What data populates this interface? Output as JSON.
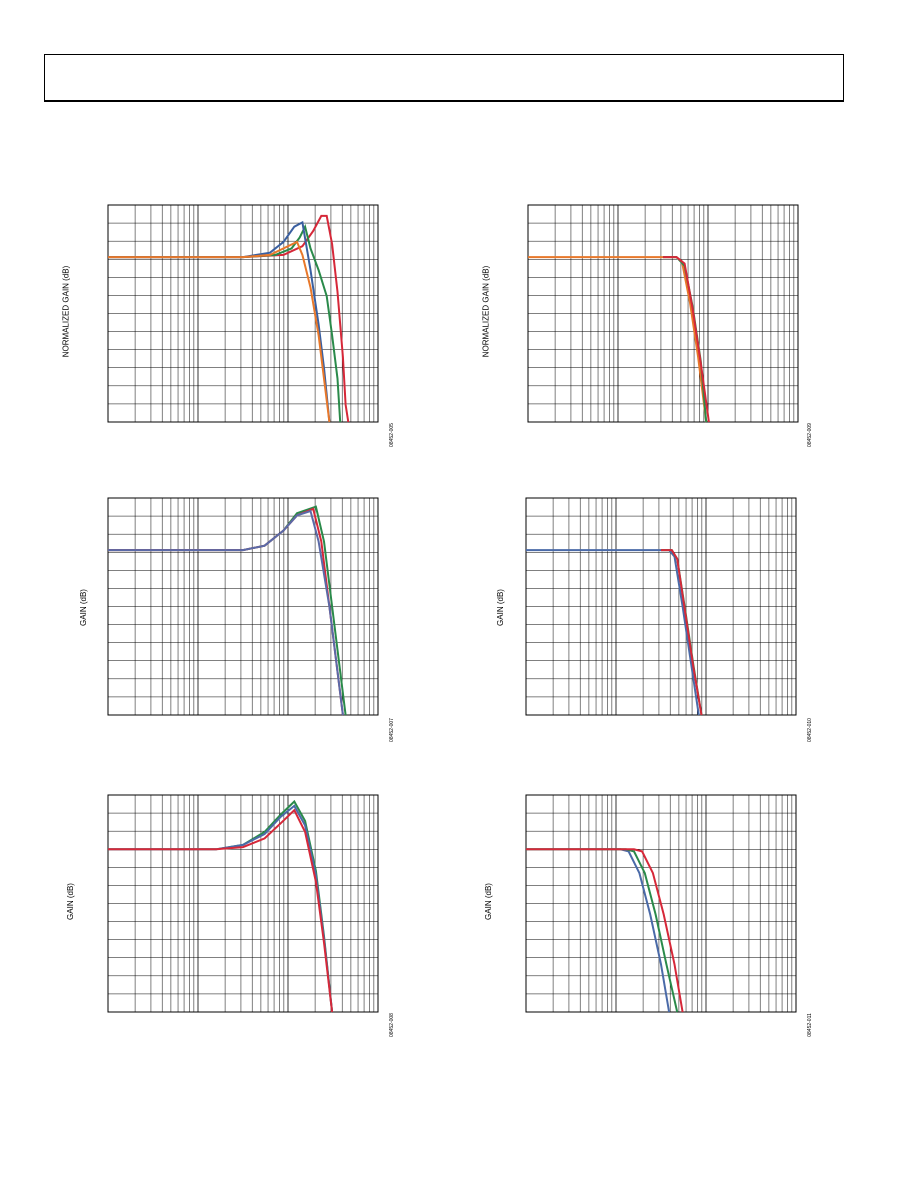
{
  "chart_data": [
    {
      "id": "p1",
      "type": "line",
      "ylabel": "NORMALIZED GAIN (dB)",
      "code": "08452-005",
      "grid_v": true,
      "grid_h": true,
      "log_x": true,
      "series": [
        {
          "color": "#d62839",
          "pts": [
            [
              0,
              0.24
            ],
            [
              0.5,
              0.24
            ],
            [
              0.65,
              0.23
            ],
            [
              0.72,
              0.19
            ],
            [
              0.76,
              0.12
            ],
            [
              0.79,
              0.05
            ],
            [
              0.81,
              0.05
            ],
            [
              0.83,
              0.18
            ],
            [
              0.85,
              0.4
            ],
            [
              0.87,
              0.7
            ],
            [
              0.88,
              0.92
            ],
            [
              0.89,
              1.0
            ]
          ]
        },
        {
          "color": "#2a8a4a",
          "pts": [
            [
              0,
              0.24
            ],
            [
              0.5,
              0.24
            ],
            [
              0.62,
              0.23
            ],
            [
              0.68,
              0.2
            ],
            [
              0.71,
              0.15
            ],
            [
              0.73,
              0.1
            ],
            [
              0.75,
              0.2
            ],
            [
              0.78,
              0.3
            ],
            [
              0.81,
              0.42
            ],
            [
              0.83,
              0.6
            ],
            [
              0.85,
              0.8
            ],
            [
              0.86,
              1.0
            ]
          ]
        },
        {
          "color": "#3a5fa0",
          "pts": [
            [
              0,
              0.24
            ],
            [
              0.5,
              0.24
            ],
            [
              0.6,
              0.22
            ],
            [
              0.65,
              0.17
            ],
            [
              0.69,
              0.1
            ],
            [
              0.72,
              0.08
            ],
            [
              0.75,
              0.3
            ],
            [
              0.78,
              0.55
            ],
            [
              0.8,
              0.75
            ],
            [
              0.82,
              1.0
            ]
          ]
        },
        {
          "color": "#e8782a",
          "pts": [
            [
              0,
              0.24
            ],
            [
              0.5,
              0.24
            ],
            [
              0.6,
              0.23
            ],
            [
              0.65,
              0.2
            ],
            [
              0.7,
              0.17
            ],
            [
              0.72,
              0.23
            ],
            [
              0.75,
              0.38
            ],
            [
              0.78,
              0.6
            ],
            [
              0.8,
              0.8
            ],
            [
              0.82,
              1.0
            ]
          ]
        }
      ]
    },
    {
      "id": "p2",
      "type": "line",
      "ylabel": "NORMALIZED GAIN (dB)",
      "code": "08452-009",
      "grid_v": true,
      "grid_h": true,
      "log_x": true,
      "series": [
        {
          "color": "#e8782a",
          "pts": [
            [
              0,
              0.24
            ],
            [
              0.5,
              0.24
            ],
            [
              0.55,
              0.24
            ],
            [
              0.57,
              0.26
            ],
            [
              0.6,
              0.45
            ],
            [
              0.63,
              0.7
            ],
            [
              0.66,
              1.0
            ]
          ]
        },
        {
          "color": "#2a8a4a",
          "pts": [
            [
              0.5,
              0.24
            ],
            [
              0.55,
              0.24
            ],
            [
              0.58,
              0.28
            ],
            [
              0.61,
              0.47
            ],
            [
              0.64,
              0.72
            ],
            [
              0.66,
              1.0
            ]
          ]
        },
        {
          "color": "#d62839",
          "pts": [
            [
              0.5,
              0.24
            ],
            [
              0.55,
              0.24
            ],
            [
              0.58,
              0.27
            ],
            [
              0.61,
              0.48
            ],
            [
              0.64,
              0.73
            ],
            [
              0.67,
              1.0
            ]
          ]
        }
      ]
    },
    {
      "id": "p3",
      "type": "line",
      "ylabel": "GAIN (dB)",
      "code": "08452-007",
      "grid_v": true,
      "grid_h": true,
      "log_x": true,
      "series": [
        {
          "color": "#2a8a4a",
          "pts": [
            [
              0,
              0.24
            ],
            [
              0.5,
              0.24
            ],
            [
              0.58,
              0.22
            ],
            [
              0.65,
              0.15
            ],
            [
              0.7,
              0.07
            ],
            [
              0.77,
              0.04
            ],
            [
              0.8,
              0.2
            ],
            [
              0.83,
              0.5
            ],
            [
              0.86,
              0.8
            ],
            [
              0.88,
              1.0
            ]
          ]
        },
        {
          "color": "#d62839",
          "pts": [
            [
              0,
              0.24
            ],
            [
              0.5,
              0.24
            ],
            [
              0.58,
              0.22
            ],
            [
              0.65,
              0.15
            ],
            [
              0.7,
              0.08
            ],
            [
              0.76,
              0.05
            ],
            [
              0.79,
              0.2
            ],
            [
              0.82,
              0.5
            ],
            [
              0.85,
              0.8
            ],
            [
              0.87,
              1.0
            ]
          ]
        },
        {
          "color": "#5a6aa8",
          "pts": [
            [
              0,
              0.24
            ],
            [
              0.5,
              0.24
            ],
            [
              0.58,
              0.22
            ],
            [
              0.65,
              0.15
            ],
            [
              0.7,
              0.08
            ],
            [
              0.75,
              0.06
            ],
            [
              0.78,
              0.2
            ],
            [
              0.82,
              0.5
            ],
            [
              0.85,
              0.8
            ],
            [
              0.87,
              1.0
            ]
          ]
        }
      ]
    },
    {
      "id": "p4",
      "type": "line",
      "ylabel": "GAIN (dB)",
      "code": "08452-010",
      "grid_v": true,
      "grid_h": true,
      "log_x": true,
      "series": [
        {
          "color": "#4a6aa8",
          "pts": [
            [
              0,
              0.24
            ],
            [
              0.5,
              0.24
            ],
            [
              0.53,
              0.24
            ],
            [
              0.55,
              0.27
            ],
            [
              0.58,
              0.5
            ],
            [
              0.61,
              0.75
            ],
            [
              0.64,
              1.0
            ]
          ]
        },
        {
          "color": "#2a8a4a",
          "pts": [
            [
              0.5,
              0.24
            ],
            [
              0.54,
              0.24
            ],
            [
              0.56,
              0.28
            ],
            [
              0.59,
              0.52
            ],
            [
              0.62,
              0.77
            ],
            [
              0.65,
              1.0
            ]
          ]
        },
        {
          "color": "#d62839",
          "pts": [
            [
              0.5,
              0.24
            ],
            [
              0.54,
              0.24
            ],
            [
              0.56,
              0.28
            ],
            [
              0.59,
              0.53
            ],
            [
              0.62,
              0.78
            ],
            [
              0.65,
              1.0
            ]
          ]
        }
      ]
    },
    {
      "id": "p5",
      "type": "line",
      "ylabel": "GAIN (dB)",
      "code": "08452-008",
      "grid_v": true,
      "grid_h": true,
      "log_x": true,
      "series": [
        {
          "color": "#2a8a4a",
          "pts": [
            [
              0,
              0.25
            ],
            [
              0.4,
              0.25
            ],
            [
              0.5,
              0.23
            ],
            [
              0.58,
              0.17
            ],
            [
              0.64,
              0.09
            ],
            [
              0.69,
              0.03
            ],
            [
              0.73,
              0.12
            ],
            [
              0.77,
              0.35
            ],
            [
              0.8,
              0.65
            ],
            [
              0.83,
              1.0
            ]
          ]
        },
        {
          "color": "#4a6aa8",
          "pts": [
            [
              0,
              0.25
            ],
            [
              0.4,
              0.25
            ],
            [
              0.5,
              0.23
            ],
            [
              0.58,
              0.18
            ],
            [
              0.64,
              0.1
            ],
            [
              0.69,
              0.05
            ],
            [
              0.73,
              0.14
            ],
            [
              0.77,
              0.37
            ],
            [
              0.8,
              0.66
            ],
            [
              0.83,
              1.0
            ]
          ]
        },
        {
          "color": "#d62839",
          "pts": [
            [
              0,
              0.25
            ],
            [
              0.4,
              0.25
            ],
            [
              0.5,
              0.24
            ],
            [
              0.58,
              0.2
            ],
            [
              0.64,
              0.13
            ],
            [
              0.69,
              0.07
            ],
            [
              0.73,
              0.17
            ],
            [
              0.77,
              0.4
            ],
            [
              0.8,
              0.68
            ],
            [
              0.83,
              1.0
            ]
          ]
        }
      ]
    },
    {
      "id": "p6",
      "type": "line",
      "ylabel": "GAIN (dB)",
      "code": "08452-011",
      "grid_v": true,
      "grid_h": true,
      "log_x": true,
      "series": [
        {
          "color": "#4a6aa8",
          "pts": [
            [
              0,
              0.25
            ],
            [
              0.35,
              0.25
            ],
            [
              0.38,
              0.26
            ],
            [
              0.42,
              0.36
            ],
            [
              0.46,
              0.55
            ],
            [
              0.5,
              0.78
            ],
            [
              0.53,
              1.0
            ]
          ]
        },
        {
          "color": "#2a8a4a",
          "pts": [
            [
              0,
              0.25
            ],
            [
              0.37,
              0.25
            ],
            [
              0.4,
              0.26
            ],
            [
              0.44,
              0.36
            ],
            [
              0.48,
              0.55
            ],
            [
              0.52,
              0.78
            ],
            [
              0.56,
              1.0
            ]
          ]
        },
        {
          "color": "#d62839",
          "pts": [
            [
              0,
              0.25
            ],
            [
              0.4,
              0.25
            ],
            [
              0.43,
              0.26
            ],
            [
              0.47,
              0.36
            ],
            [
              0.51,
              0.55
            ],
            [
              0.55,
              0.78
            ],
            [
              0.58,
              1.0
            ]
          ]
        }
      ]
    }
  ]
}
